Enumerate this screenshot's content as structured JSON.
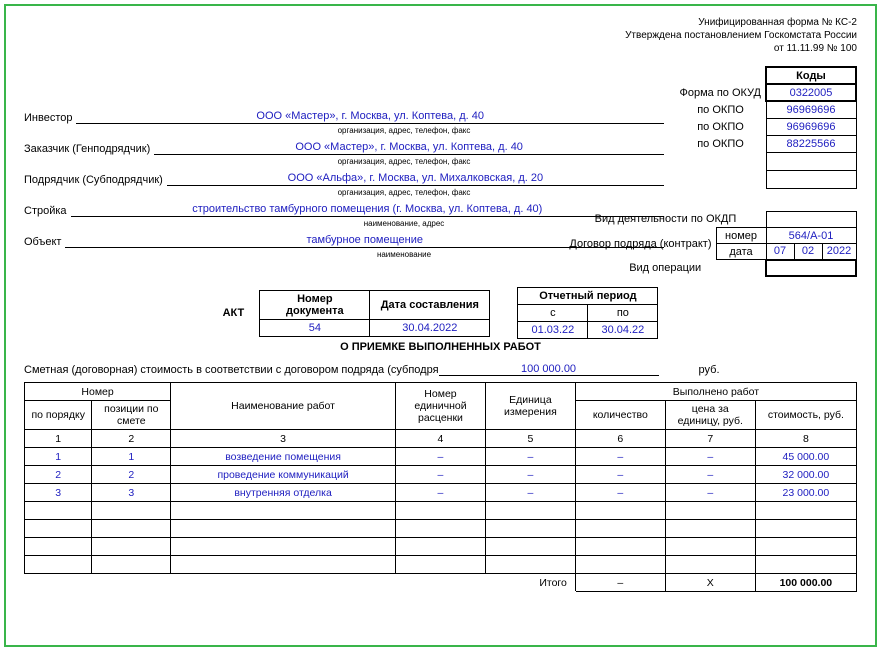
{
  "header": {
    "form_line": "Унифицированная форма № КС-2",
    "approved_line": "Утверждена постановлением Госкомстата России",
    "date_line": "от 11.11.99 № 100"
  },
  "codes": {
    "codes_header": "Коды",
    "okud_label": "Форма по ОКУД",
    "okud": "0322005",
    "okpo_label": "по ОКПО",
    "investor_okpo": "96969696",
    "customer_okpo": "96969696",
    "contractor_okpo": "88225566",
    "okdp_label": "Вид деятельности по ОКДП",
    "okdp": ""
  },
  "parties": {
    "investor_label": "Инвестор",
    "investor": "ООО «Мастер», г. Москва, ул. Коптева, д. 40",
    "investor_sub": "организация, адрес, телефон, факс",
    "customer_label": "Заказчик (Генподрядчик)",
    "customer": "ООО «Мастер», г. Москва, ул. Коптева, д. 40",
    "customer_sub": "организация, адрес, телефон, факс",
    "contractor_label": "Подрядчик (Субподрядчик)",
    "contractor": "ООО «Альфа», г. Москва, ул. Михалковская, д. 20",
    "contractor_sub": "организация, адрес, телефон, факс",
    "construction_label": "Стройка",
    "construction": "строительство тамбурного помещения (г. Москва, ул. Коптева, д. 40)",
    "construction_sub": "наименование, адрес",
    "object_label": "Объект",
    "object": "тамбурное помещение",
    "object_sub": "наименование"
  },
  "contract": {
    "label": "Договор подряда (контракт)",
    "number_label": "номер",
    "number": "564/А-01",
    "date_label": "дата",
    "day": "07",
    "month": "02",
    "year": "2022",
    "operation_label": "Вид операции",
    "operation": ""
  },
  "doc": {
    "akt": "АКТ",
    "title": "О ПРИЕМКЕ ВЫПОЛНЕННЫХ РАБОТ",
    "num_header": "Номер документа",
    "date_header": "Дата составления",
    "number": "54",
    "date": "30.04.2022",
    "period_header": "Отчетный период",
    "from_label": "с",
    "to_label": "по",
    "from": "01.03.22",
    "to": "30.04.22"
  },
  "estimate": {
    "label": "Сметная (договорная) стоимость в соответствии с договором подряда (субподря",
    "value": "100 000.00",
    "unit": "руб."
  },
  "table": {
    "headers": {
      "number_group": "Номер",
      "order": "по порядку",
      "position": "позиции по смете",
      "name": "Наименование работ",
      "rate": "Номер единичной расценки",
      "unit": "Единица измерения",
      "done_group": "Выполнено работ",
      "qty": "количество",
      "price": "цена за единицу, руб.",
      "cost": "стоимость, руб."
    },
    "colnums": {
      "c1": "1",
      "c2": "2",
      "c3": "3",
      "c4": "4",
      "c5": "5",
      "c6": "6",
      "c7": "7",
      "c8": "8"
    },
    "rows": [
      {
        "n": "1",
        "pos": "1",
        "name": "возведение помещения",
        "rate": "–",
        "unit": "–",
        "qty": "–",
        "price": "–",
        "cost": "45 000.00"
      },
      {
        "n": "2",
        "pos": "2",
        "name": "проведение коммуникаций",
        "rate": "–",
        "unit": "–",
        "qty": "–",
        "price": "–",
        "cost": "32 000.00"
      },
      {
        "n": "3",
        "pos": "3",
        "name": "внутренняя отделка",
        "rate": "–",
        "unit": "–",
        "qty": "–",
        "price": "–",
        "cost": "23 000.00"
      }
    ],
    "itogo_label": "Итого",
    "itogo_qty": "–",
    "itogo_price": "Х",
    "itogo_cost": "100 000.00"
  },
  "colors": {
    "border": "#39b54a",
    "value": "#2020c0"
  }
}
